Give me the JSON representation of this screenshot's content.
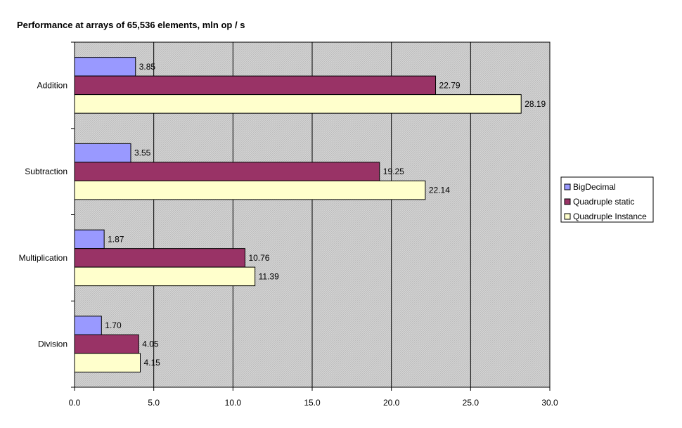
{
  "chart_data": {
    "type": "bar",
    "orientation": "horizontal",
    "title": "Performance at arrays of 65,536 elements, mln op / s",
    "categories": [
      "Addition",
      "Subtraction",
      "Multiplication",
      "Division"
    ],
    "series": [
      {
        "name": "BigDecimal",
        "values": [
          3.85,
          3.55,
          1.87,
          1.7
        ],
        "color": "#9999ff"
      },
      {
        "name": "Quadruple static",
        "values": [
          22.79,
          19.25,
          10.76,
          4.05
        ],
        "color": "#993366"
      },
      {
        "name": "Quadruple Instance",
        "values": [
          28.19,
          22.14,
          11.39,
          4.15
        ],
        "color": "#ffffcc"
      }
    ],
    "value_labels": [
      [
        "3.85",
        "22.79",
        "28.19"
      ],
      [
        "3.55",
        "19.25",
        "22.14"
      ],
      [
        "1.87",
        "10.76",
        "11.39"
      ],
      [
        "1.70",
        "4.05",
        "4.15"
      ]
    ],
    "xlim": [
      0,
      30
    ],
    "xticks": [
      0,
      5,
      10,
      15,
      20,
      25,
      30
    ],
    "xtick_labels": [
      "0.0",
      "5.0",
      "10.0",
      "15.0",
      "20.0",
      "25.0",
      "30.0"
    ],
    "grid": true,
    "plot_background": "hatched gray",
    "legend_position": "right",
    "xlabel": "",
    "ylabel": ""
  }
}
